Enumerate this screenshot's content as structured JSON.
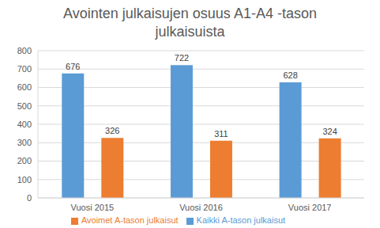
{
  "chart_data": {
    "type": "bar",
    "title": "Avointen julkaisujen osuus A1-A4 -tason julkaisuista",
    "categories": [
      "Vuosi 2015",
      "Vuosi 2016",
      "Vuosi 2017"
    ],
    "series": [
      {
        "name": "Kaikki A-tason julkaisut",
        "color": "#5b9bd5",
        "values": [
          676,
          722,
          628
        ]
      },
      {
        "name": "Avoimet A-tason julkaisut",
        "color": "#ed7d31",
        "values": [
          326,
          311,
          324
        ]
      }
    ],
    "ylim": [
      0,
      800
    ],
    "yticks": [
      0,
      100,
      200,
      300,
      400,
      500,
      600,
      700,
      800
    ],
    "grid": true,
    "data_labels": true,
    "legend": "bottom"
  }
}
